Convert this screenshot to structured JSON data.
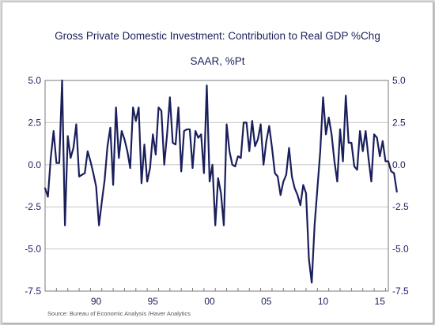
{
  "chart_data": {
    "type": "line",
    "title": "Gross Private Domestic Investment: Contribution to Real GDP %Chg",
    "subtitle": "SAAR, %Pt",
    "source": "Source:  Bureau of Economic Analysis /Haver Analytics",
    "xlabel": "",
    "ylabel": "",
    "ylim": [
      -7.5,
      5.0
    ],
    "xlim": [
      1986.0,
      2016.25
    ],
    "y_ticks": [
      5.0,
      2.5,
      0.0,
      -2.5,
      -5.0,
      -7.5
    ],
    "y_tick_labels": [
      "5.0",
      "2.5",
      "0.0",
      "-2.5",
      "-5.0",
      "-7.5"
    ],
    "x_ticks": [
      1990,
      1995,
      2000,
      2005,
      2010,
      2015
    ],
    "x_tick_labels": [
      "90",
      "95",
      "00",
      "05",
      "10",
      "15"
    ],
    "grid": "horizontal",
    "line_color": "#1a1f5c",
    "series": [
      {
        "x_start": 1986.0,
        "x_step": 0.25,
        "values": [
          -1.4,
          -1.9,
          0.4,
          2.0,
          0.1,
          0.1,
          5.0,
          -3.6,
          1.7,
          0.4,
          1.0,
          2.4,
          -0.7,
          -0.6,
          -0.5,
          0.8,
          0.2,
          -0.5,
          -1.3,
          -3.6,
          -2.2,
          -0.9,
          1.1,
          2.2,
          -1.2,
          3.4,
          0.4,
          2.0,
          1.5,
          0.8,
          -0.2,
          3.4,
          2.6,
          3.4,
          -1.1,
          1.2,
          -1.0,
          -0.2,
          1.8,
          0.6,
          3.4,
          3.2,
          0.0,
          1.8,
          4.0,
          1.3,
          1.2,
          3.4,
          -0.4,
          2.0,
          2.1,
          2.1,
          -0.2,
          2.0,
          1.6,
          1.8,
          -0.5,
          4.7,
          -1.0,
          0.0,
          -3.6,
          -0.8,
          -1.7,
          -3.6,
          2.4,
          0.8,
          0.0,
          -0.1,
          0.5,
          0.4,
          2.5,
          2.5,
          0.8,
          2.6,
          1.1,
          1.5,
          2.4,
          0.0,
          1.4,
          2.3,
          1.0,
          -0.5,
          -0.7,
          -1.8,
          -1.0,
          -0.6,
          1.0,
          -0.7,
          -1.4,
          -1.8,
          -2.4,
          -1.2,
          -1.7,
          -5.6,
          -7.0,
          -3.6,
          -1.4,
          0.8,
          4.0,
          1.8,
          2.8,
          1.8,
          0.2,
          -1.0,
          2.1,
          0.2,
          4.1,
          1.3,
          1.3,
          -0.1,
          -0.3,
          2.0,
          0.8,
          2.0,
          0.4,
          -1.0,
          1.8,
          1.6,
          0.5,
          1.4,
          0.2,
          0.2,
          -0.4,
          -0.5,
          -1.6
        ]
      }
    ]
  }
}
